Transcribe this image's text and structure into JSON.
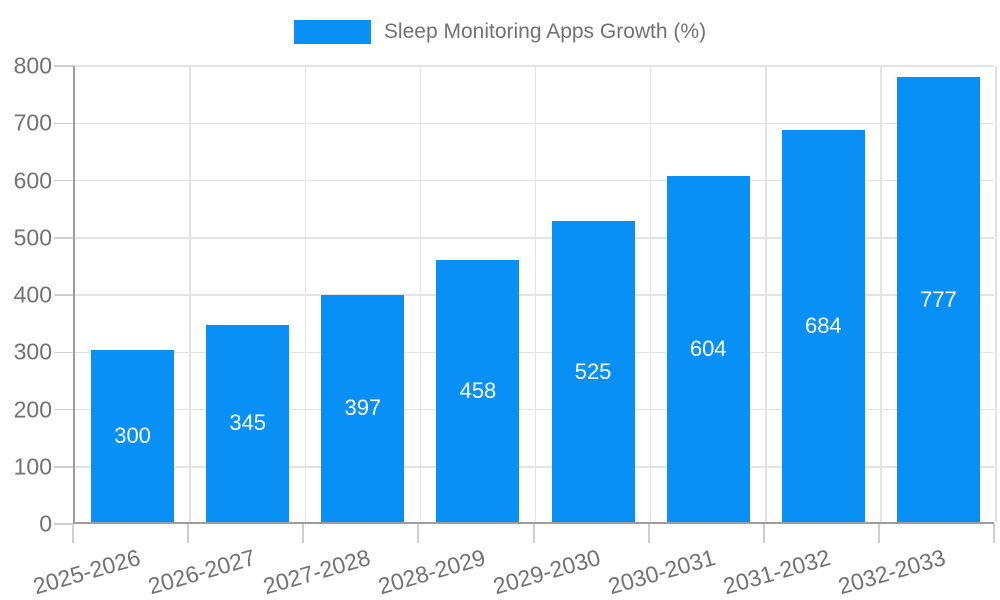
{
  "chart_data": {
    "type": "bar",
    "title": "Sleep Monitoring Apps Growth (%)",
    "categories": [
      "2025-2026",
      "2026-2027",
      "2027-2028",
      "2028-2029",
      "2029-2030",
      "2030-2031",
      "2031-2032",
      "2032-2033"
    ],
    "values": [
      300,
      345,
      397,
      458,
      525,
      604,
      684,
      777
    ],
    "xlabel": "",
    "ylabel": "",
    "ylim": [
      0,
      800
    ],
    "yticks": [
      0,
      100,
      200,
      300,
      400,
      500,
      600,
      700,
      800
    ],
    "grid": true,
    "legend_position": "top-center",
    "bar_labels_inside": true
  },
  "colors": {
    "bar": "#0890f6",
    "axis_text": "#727272",
    "grid": "#e3e3e3",
    "tick": "#cfcfcf",
    "axis_line": "#9d9d9d",
    "value_label": "#ffffff",
    "background": "#ffffff"
  }
}
